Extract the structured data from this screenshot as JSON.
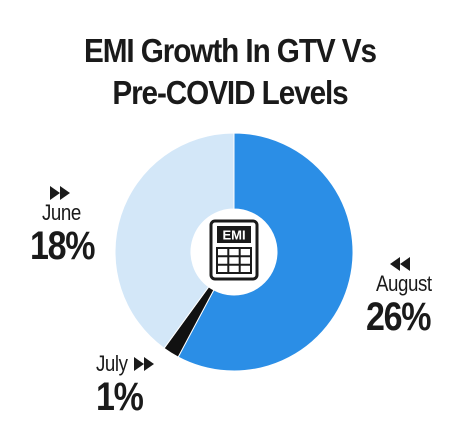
{
  "chart_data": {
    "type": "pie",
    "title_lines": [
      "EMI Growth In GTV Vs",
      "Pre-COVID Levels"
    ],
    "center_icon_text": "EMI",
    "slices": [
      {
        "label": "August",
        "value": "26%",
        "share": 26,
        "color": "#2b8ee6"
      },
      {
        "label": "July",
        "value": "1%",
        "share": 1,
        "color": "#111111"
      },
      {
        "label": "June",
        "value": "18%",
        "share": 18,
        "color": "#d3e7f8"
      }
    ]
  }
}
